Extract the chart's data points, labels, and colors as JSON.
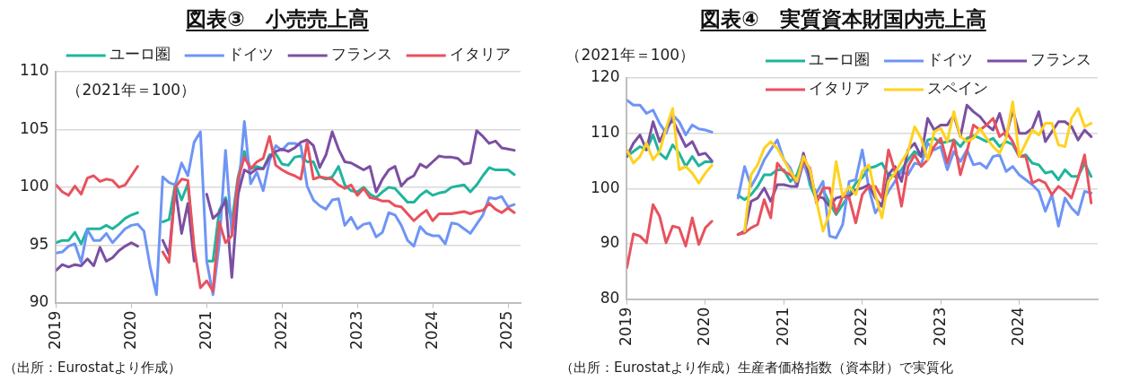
{
  "chart_data": [
    {
      "type": "line",
      "title": "図表③　小売売上高",
      "subtitle": "（2021年＝100）",
      "annotations": [
        "（出所：Eurostatより作成）"
      ],
      "legend": "top",
      "grid": "y",
      "x": [
        "2019-01",
        "2019-02",
        "2019-03",
        "2019-04",
        "2019-05",
        "2019-06",
        "2019-07",
        "2019-08",
        "2019-09",
        "2019-10",
        "2019-11",
        "2019-12",
        "2020-01",
        "2020-02",
        "2020-03",
        "2020-04",
        "2020-05",
        "2020-06",
        "2020-07",
        "2020-08",
        "2020-09",
        "2020-10",
        "2020-11",
        "2020-12",
        "2021-01",
        "2021-02",
        "2021-03",
        "2021-04",
        "2021-05",
        "2021-06",
        "2021-07",
        "2021-08",
        "2021-09",
        "2021-10",
        "2021-11",
        "2021-12",
        "2022-01",
        "2022-02",
        "2022-03",
        "2022-04",
        "2022-05",
        "2022-06",
        "2022-07",
        "2022-08",
        "2022-09",
        "2022-10",
        "2022-11",
        "2022-12",
        "2023-01",
        "2023-02",
        "2023-03",
        "2023-04",
        "2023-05",
        "2023-06",
        "2023-07",
        "2023-08",
        "2023-09",
        "2023-10",
        "2023-11",
        "2023-12",
        "2024-01",
        "2024-02",
        "2024-03",
        "2024-04",
        "2024-05",
        "2024-06",
        "2024-07",
        "2024-08",
        "2024-09",
        "2024-10",
        "2024-11",
        "2024-12",
        "2025-01",
        "2025-02"
      ],
      "xlim": [
        "2019-01",
        "2025-03"
      ],
      "xticks": [
        {
          "value": "2019-01",
          "label": "2019"
        },
        {
          "value": "2020-01",
          "label": "2020"
        },
        {
          "value": "2021-01",
          "label": "2021"
        },
        {
          "value": "2022-01",
          "label": "2022"
        },
        {
          "value": "2023-01",
          "label": "2023"
        },
        {
          "value": "2024-01",
          "label": "2024"
        },
        {
          "value": "2025-01",
          "label": "2025"
        }
      ],
      "ylim": [
        90,
        110
      ],
      "yticks": [
        90,
        95,
        100,
        105,
        110
      ],
      "series": [
        {
          "name": "ユーロ圏",
          "color": "#1fb59e",
          "values": [
            95.2,
            95.4,
            95.4,
            96.1,
            95.1,
            96.4,
            96.4,
            96.4,
            96.7,
            96.4,
            96.8,
            97.3,
            97.6,
            97.8,
            null,
            null,
            null,
            97.0,
            97.2,
            100.3,
            98.9,
            100.3,
            94.5,
            null,
            93.6,
            93.6,
            98.0,
            99.1,
            97.0,
            100.9,
            103.1,
            101.6,
            101.8,
            101.6,
            102.8,
            102.9,
            102.0,
            101.9,
            102.6,
            102.7,
            102.2,
            102.2,
            100.9,
            100.7,
            100.9,
            101.8,
            100.2,
            99.7,
            99.6,
            100.0,
            99.4,
            99.1,
            99.6,
            100.0,
            99.9,
            99.3,
            98.7,
            98.7,
            99.3,
            99.7,
            99.3,
            99.5,
            99.6,
            100.0,
            100.1,
            100.2,
            99.6,
            100.2,
            101.0,
            101.7,
            101.5,
            101.5,
            101.5,
            101.1
          ]
        },
        {
          "name": "ドイツ",
          "color": "#6e95f5",
          "values": [
            94.3,
            94.4,
            94.9,
            95.1,
            93.5,
            96.3,
            95.4,
            95.4,
            96.0,
            95.2,
            95.8,
            96.4,
            96.7,
            96.8,
            96.2,
            93.1,
            90.7,
            100.9,
            100.4,
            100.2,
            102.1,
            101.0,
            103.9,
            104.8,
            93.6,
            90.7,
            95.1,
            103.2,
            96.0,
            99.4,
            105.7,
            100.3,
            101.3,
            99.7,
            102.3,
            103.6,
            103.2,
            103.8,
            103.8,
            103.6,
            100.1,
            98.9,
            98.4,
            98.1,
            98.9,
            99.0,
            96.7,
            97.4,
            96.4,
            96.8,
            96.9,
            95.7,
            96.1,
            97.8,
            97.6,
            96.7,
            95.4,
            94.9,
            96.6,
            96.0,
            95.8,
            95.8,
            95.1,
            96.9,
            96.8,
            96.4,
            96.0,
            96.8,
            97.6,
            99.1,
            99.0,
            99.2,
            98.3,
            98.5
          ]
        },
        {
          "name": "フランス",
          "color": "#7b4fa3",
          "values": [
            92.8,
            93.3,
            93.1,
            93.3,
            93.2,
            93.8,
            93.2,
            94.8,
            93.6,
            93.9,
            94.5,
            94.9,
            95.2,
            94.9,
            null,
            null,
            null,
            95.4,
            94.2,
            99.9,
            96.0,
            98.6,
            93.6,
            null,
            99.4,
            97.3,
            97.8,
            98.9,
            92.2,
            99.4,
            101.5,
            101.2,
            101.6,
            101.6,
            102.6,
            103.1,
            103.3,
            103.1,
            103.4,
            103.9,
            104.1,
            103.6,
            101.7,
            102.8,
            104.8,
            103.3,
            102.2,
            102.1,
            101.8,
            101.5,
            101.8,
            99.6,
            100.7,
            101.5,
            101.8,
            100.1,
            100.7,
            101.0,
            102.0,
            101.7,
            102.2,
            102.7,
            102.6,
            102.6,
            102.5,
            102.0,
            102.1,
            104.9,
            104.4,
            103.8,
            104.0,
            103.4,
            103.3,
            103.2
          ]
        },
        {
          "name": "イタリア",
          "color": "#e8525e",
          "values": [
            100.2,
            99.6,
            99.3,
            100.1,
            99.4,
            100.8,
            101.0,
            100.5,
            100.7,
            100.6,
            100.0,
            100.2,
            101.0,
            101.8,
            null,
            null,
            null,
            94.4,
            93.5,
            100.0,
            100.7,
            100.6,
            94.8,
            91.3,
            91.9,
            91.0,
            97.0,
            95.2,
            95.8,
            100.7,
            102.6,
            101.6,
            102.2,
            102.5,
            104.4,
            101.9,
            101.5,
            101.2,
            101.0,
            100.7,
            103.9,
            100.7,
            100.9,
            100.8,
            100.7,
            100.2,
            99.9,
            100.2,
            99.3,
            99.9,
            99.1,
            99.0,
            98.8,
            98.8,
            98.4,
            98.3,
            97.7,
            97.1,
            97.6,
            98.0,
            97.1,
            97.7,
            97.7,
            97.7,
            97.8,
            97.9,
            97.7,
            97.9,
            98.0,
            98.6,
            98.1,
            97.8,
            98.2,
            97.8
          ]
        }
      ]
    },
    {
      "type": "line",
      "title": "図表④　実質資本財国内売上高",
      "subtitle": "（2021年＝100）",
      "annotations": [
        "（出所：Eurostatより作成）生産者価格指数（資本財）で実質化"
      ],
      "legend": "top right",
      "grid": "y",
      "x": [
        "2019-01",
        "2019-02",
        "2019-03",
        "2019-04",
        "2019-05",
        "2019-06",
        "2019-07",
        "2019-08",
        "2019-09",
        "2019-10",
        "2019-11",
        "2019-12",
        "2020-01",
        "2020-02",
        "2020-03",
        "2020-04",
        "2020-05",
        "2020-06",
        "2020-07",
        "2020-08",
        "2020-09",
        "2020-10",
        "2020-11",
        "2020-12",
        "2021-01",
        "2021-02",
        "2021-03",
        "2021-04",
        "2021-05",
        "2021-06",
        "2021-07",
        "2021-08",
        "2021-09",
        "2021-10",
        "2021-11",
        "2021-12",
        "2022-01",
        "2022-02",
        "2022-03",
        "2022-04",
        "2022-05",
        "2022-06",
        "2022-07",
        "2022-08",
        "2022-09",
        "2022-10",
        "2022-11",
        "2022-12",
        "2023-01",
        "2023-02",
        "2023-03",
        "2023-04",
        "2023-05",
        "2023-06",
        "2023-07",
        "2023-08",
        "2023-09",
        "2023-10",
        "2023-11",
        "2023-12",
        "2024-01",
        "2024-02",
        "2024-03",
        "2024-04",
        "2024-05",
        "2024-06",
        "2024-07",
        "2024-08",
        "2024-09",
        "2024-10",
        "2024-11",
        "2024-12"
      ],
      "xlim": [
        "2019-01",
        "2025-01"
      ],
      "xticks": [
        {
          "value": "2019-01",
          "label": "2019"
        },
        {
          "value": "2020-01",
          "label": "2020"
        },
        {
          "value": "2021-01",
          "label": "2021"
        },
        {
          "value": "2022-01",
          "label": "2022"
        },
        {
          "value": "2023-01",
          "label": "2023"
        },
        {
          "value": "2024-01",
          "label": "2024"
        }
      ],
      "ylim": [
        80,
        120
      ],
      "yticks": [
        80,
        90,
        100,
        110,
        120
      ],
      "series": [
        {
          "name": "ユーロ圏",
          "color": "#1fb59e",
          "values": [
            105.8,
            106.7,
            107.6,
            107.0,
            109.7,
            106.4,
            105.4,
            107.9,
            106.4,
            104.0,
            105.8,
            104.1,
            104.9,
            104.8,
            null,
            null,
            null,
            98.8,
            98.0,
            98.9,
            100.4,
            102.5,
            102.5,
            103.4,
            103.4,
            101.3,
            102.5,
            105.8,
            100.7,
            98.0,
            99.8,
            97.4,
            95.3,
            97.1,
            98.9,
            101.0,
            102.0,
            103.7,
            104.0,
            104.6,
            102.5,
            102.2,
            103.4,
            105.2,
            106.7,
            105.8,
            108.8,
            109.1,
            108.2,
            108.5,
            108.8,
            107.6,
            109.1,
            109.6,
            109.1,
            108.5,
            109.1,
            107.6,
            108.5,
            108.0,
            105.8,
            106.1,
            104.6,
            104.3,
            102.8,
            103.1,
            101.6,
            103.4,
            102.2,
            102.2,
            104.6,
            102.2
          ]
        },
        {
          "name": "ドイツ",
          "color": "#6e95f5",
          "values": [
            116.0,
            115.1,
            115.1,
            113.6,
            114.2,
            111.8,
            110.0,
            113.3,
            112.1,
            109.7,
            111.5,
            110.8,
            110.6,
            110.2,
            null,
            null,
            null,
            98.3,
            104.0,
            100.4,
            102.5,
            105.2,
            107.0,
            108.8,
            105.2,
            103.7,
            100.4,
            104.6,
            101.3,
            99.2,
            101.3,
            91.4,
            91.1,
            93.5,
            101.3,
            101.6,
            107.0,
            100.1,
            95.6,
            97.4,
            99.5,
            101.3,
            103.1,
            102.5,
            104.6,
            104.3,
            108.2,
            107.0,
            107.6,
            103.4,
            106.7,
            104.9,
            107.0,
            104.3,
            104.6,
            103.7,
            105.8,
            106.1,
            103.1,
            104.0,
            102.5,
            101.6,
            100.7,
            99.5,
            95.9,
            98.9,
            93.2,
            98.3,
            96.5,
            95.3,
            99.5,
            99.2
          ]
        },
        {
          "name": "フランス",
          "color": "#7b4fa3",
          "values": [
            105.8,
            108.2,
            109.7,
            107.0,
            112.1,
            108.5,
            110.9,
            112.4,
            110.0,
            107.6,
            108.5,
            106.1,
            106.4,
            105.0,
            null,
            null,
            null,
            91.7,
            92.3,
            97.7,
            98.3,
            100.1,
            97.7,
            100.7,
            100.7,
            100.4,
            100.4,
            106.4,
            101.9,
            98.6,
            98.3,
            96.8,
            98.3,
            98.6,
            98.6,
            99.8,
            100.1,
            100.7,
            98.3,
            96.8,
            102.5,
            104.0,
            101.3,
            107.0,
            108.2,
            105.8,
            112.7,
            110.6,
            111.5,
            111.5,
            113.3,
            109.4,
            115.1,
            113.9,
            113.0,
            111.5,
            110.6,
            113.6,
            109.4,
            114.2,
            110.0,
            110.0,
            110.9,
            113.9,
            108.5,
            110.3,
            112.1,
            112.1,
            111.2,
            108.8,
            110.6,
            109.4
          ]
        },
        {
          "name": "イタリア",
          "color": "#e8525e",
          "values": [
            85.7,
            91.8,
            91.4,
            90.2,
            97.1,
            95.0,
            90.2,
            93.2,
            92.9,
            89.6,
            94.7,
            89.9,
            92.9,
            94.1,
            null,
            null,
            null,
            91.7,
            92.0,
            92.9,
            93.5,
            98.0,
            94.7,
            104.6,
            103.1,
            102.5,
            101.3,
            104.9,
            103.7,
            97.4,
            100.1,
            100.1,
            95.6,
            98.6,
            98.3,
            93.8,
            98.9,
            100.4,
            100.4,
            98.3,
            107.0,
            103.1,
            96.8,
            104.0,
            106.1,
            104.0,
            105.2,
            107.6,
            109.1,
            104.6,
            108.8,
            102.5,
            106.7,
            111.5,
            110.6,
            111.5,
            112.7,
            109.4,
            110.3,
            108.5,
            105.8,
            105.8,
            101.0,
            101.6,
            101.0,
            98.9,
            100.4,
            99.5,
            98.3,
            101.9,
            106.1,
            97.4
          ]
        },
        {
          "name": "スペイン",
          "color": "#ffd21f",
          "values": [
            107.0,
            104.6,
            105.8,
            108.2,
            105.2,
            106.7,
            110.9,
            114.5,
            103.4,
            104.0,
            102.8,
            101.0,
            102.8,
            104.2,
            null,
            null,
            null,
            null,
            92.3,
            102.5,
            104.3,
            107.3,
            108.5,
            107.3,
            105.2,
            103.1,
            101.3,
            105.8,
            103.4,
            97.7,
            92.3,
            95.6,
            104.9,
            98.6,
            100.4,
            98.9,
            103.1,
            104.3,
            98.9,
            94.7,
            101.3,
            102.8,
            104.9,
            106.7,
            111.2,
            109.1,
            105.2,
            110.3,
            110.9,
            108.5,
            113.9,
            109.4,
            108.5,
            109.1,
            110.9,
            109.1,
            107.6,
            106.4,
            109.1,
            115.7,
            105.8,
            108.2,
            110.6,
            109.7,
            111.8,
            111.8,
            107.9,
            107.6,
            112.7,
            114.5,
            111.2,
            111.8
          ]
        }
      ]
    }
  ]
}
